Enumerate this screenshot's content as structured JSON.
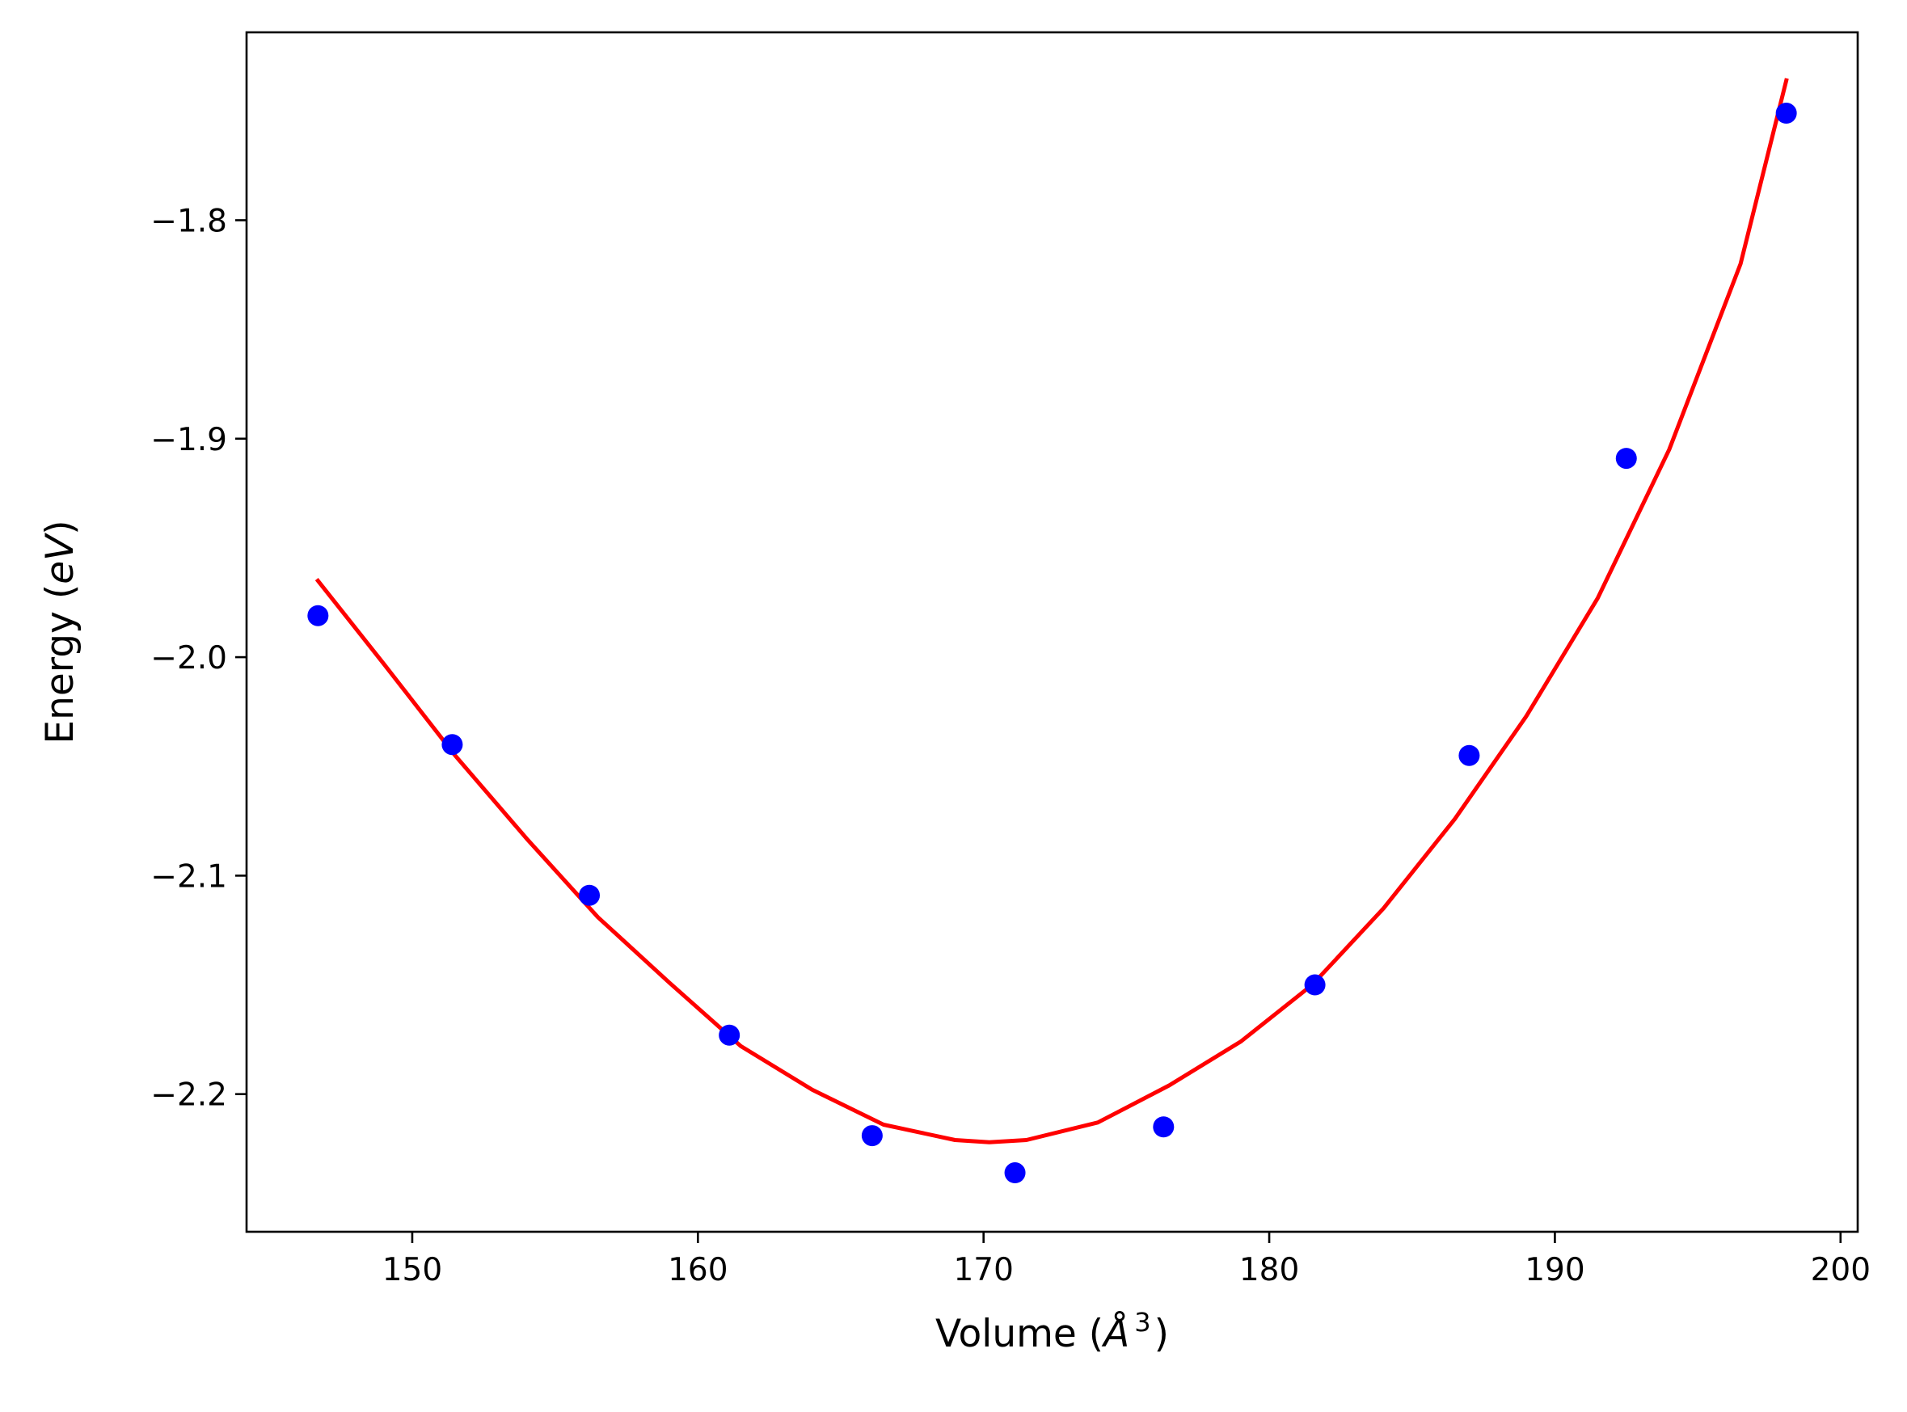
{
  "chart_data": {
    "type": "scatter",
    "xlabel": {
      "prefix": "Volume (",
      "math": "Å",
      "sup": "3",
      "suffix": ")"
    },
    "ylabel": {
      "prefix": "Energy (",
      "math": "eV",
      "suffix": ")"
    },
    "xlim": [
      144.2,
      200.6
    ],
    "ylim": [
      -2.263,
      -1.714
    ],
    "xticks": [
      150,
      160,
      170,
      180,
      190,
      200
    ],
    "xtick_labels": [
      "150",
      "160",
      "170",
      "180",
      "190",
      "200"
    ],
    "yticks": [
      -2.2,
      -2.1,
      -2.0,
      -1.9,
      -1.8
    ],
    "ytick_labels": [
      "−2.2",
      "−2.1",
      "−2.0",
      "−1.9",
      "−1.8"
    ],
    "grid": false,
    "legend": "none",
    "series": [
      {
        "kind": "points",
        "color": "#0000ff",
        "x": [
          146.7,
          151.4,
          156.2,
          161.1,
          166.1,
          171.1,
          176.3,
          181.6,
          187.0,
          192.5,
          198.1
        ],
        "y": [
          -1.981,
          -2.04,
          -2.109,
          -2.173,
          -2.219,
          -2.236,
          -2.215,
          -2.15,
          -2.045,
          -1.909,
          -1.751
        ]
      },
      {
        "kind": "fit-line",
        "color": "#ff0000",
        "x": [
          146.7,
          149.0,
          151.5,
          154.0,
          156.5,
          159.0,
          161.5,
          164.0,
          166.5,
          169.0,
          170.2,
          171.5,
          174.0,
          176.5,
          179.0,
          181.5,
          184.0,
          186.5,
          189.0,
          191.5,
          194.0,
          196.5,
          198.1
        ],
        "y": [
          -1.965,
          -2.003,
          -2.045,
          -2.083,
          -2.119,
          -2.149,
          -2.178,
          -2.198,
          -2.214,
          -2.221,
          -2.222,
          -2.221,
          -2.213,
          -2.196,
          -2.176,
          -2.15,
          -2.115,
          -2.074,
          -2.027,
          -1.973,
          -1.905,
          -1.82,
          -1.736
        ]
      }
    ]
  }
}
